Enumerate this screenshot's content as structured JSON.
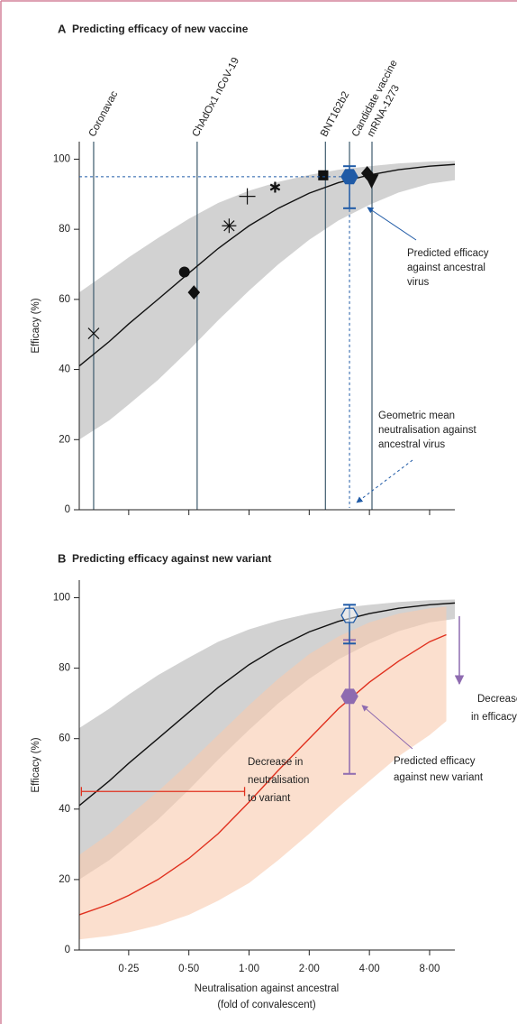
{
  "chart_data": [
    {
      "type": "scatter",
      "panel": "A",
      "title": "Predicting efficacy of new vaccine",
      "y_label": "Efficacy (%)",
      "log_x": true,
      "xlim": [
        0.1415,
        10.7
      ],
      "ylim": [
        0,
        105
      ],
      "xticks": [
        0.25,
        0.5,
        1,
        2,
        4,
        8
      ],
      "yticks": [
        0,
        20,
        40,
        60,
        80,
        100
      ],
      "vaccines": [
        {
          "name": "Coronavac",
          "x": 0.167
        },
        {
          "name": "ChAdOx1 nCoV-19",
          "x": 0.55
        },
        {
          "name": "BNT162b2",
          "x": 2.41
        },
        {
          "name": "mRNA-1273",
          "x": 4.12
        }
      ],
      "points": [
        {
          "x": 0.167,
          "y": 50.3,
          "marker": "x"
        },
        {
          "x": 0.475,
          "y": 67.8,
          "marker": "circle"
        },
        {
          "x": 0.53,
          "y": 62,
          "marker": "diamond"
        },
        {
          "x": 0.795,
          "y": 81,
          "marker": "asterisk"
        },
        {
          "x": 0.98,
          "y": 89.4,
          "marker": "plus"
        },
        {
          "x": 1.35,
          "y": 92,
          "marker": "star"
        },
        {
          "x": 2.35,
          "y": 95.4,
          "marker": "square"
        },
        {
          "x": 3.9,
          "y": 96,
          "marker": "diamond"
        },
        {
          "x": 4.1,
          "y": 94,
          "marker": "triangle-down"
        }
      ],
      "series": [
        {
          "color": "#111111",
          "band_color": "#d2d2d2",
          "x": [
            0.1415,
            0.2,
            0.25,
            0.35,
            0.5,
            0.7,
            1,
            1.4,
            2,
            2.8,
            4,
            5.6,
            8,
            10.7
          ],
          "values": [
            41,
            48,
            53,
            60,
            67.5,
            74.5,
            81,
            86,
            90.3,
            93.3,
            95.5,
            97,
            98,
            98.5
          ],
          "upper": [
            62,
            68,
            72,
            77.5,
            83,
            87.5,
            91,
            93.5,
            95.5,
            97,
            98,
            98.8,
            99.3,
            99.5
          ],
          "lower": [
            20,
            25.5,
            30,
            37,
            45.5,
            54,
            62.5,
            70,
            77,
            82.5,
            87,
            90.5,
            93,
            94
          ]
        }
      ],
      "candidate": {
        "name": "Candidate vaccine",
        "x": 3.18,
        "y": 95,
        "ci": [
          86,
          98
        ],
        "color": "#1f5aa6"
      },
      "annotations": [
        {
          "lines": [
            "Predicted efficacy",
            "against ancestral",
            "virus"
          ]
        },
        {
          "lines": [
            "Geometric mean",
            "neutralisation against",
            "ancestral virus"
          ]
        }
      ]
    },
    {
      "type": "line",
      "panel": "B",
      "title": "Predicting efficacy against new variant",
      "y_label": "Efficacy (%)",
      "x_label": [
        "Neutralisation against ancestral",
        "(fold of convalescent)"
      ],
      "log_x": true,
      "xlim": [
        0.1415,
        10.7
      ],
      "ylim": [
        0,
        105
      ],
      "xticks": [
        {
          "value": 0.25,
          "label": "0·25"
        },
        {
          "value": 0.5,
          "label": "0·50"
        },
        {
          "value": 1,
          "label": "1·00"
        },
        {
          "value": 2,
          "label": "2·00"
        },
        {
          "value": 4,
          "label": "4·00"
        },
        {
          "value": 8,
          "label": "8·00"
        }
      ],
      "yticks": [
        0,
        20,
        40,
        60,
        80,
        100
      ],
      "series": [
        {
          "color": "#111111",
          "band_color": "#d2d2d2",
          "x": [
            0.1415,
            0.2,
            0.25,
            0.35,
            0.5,
            0.7,
            1,
            1.4,
            2,
            2.8,
            4,
            5.6,
            8,
            10.7
          ],
          "values": [
            41,
            48,
            53,
            60,
            67.5,
            74.5,
            81,
            86,
            90.3,
            93.3,
            95.5,
            97,
            98,
            98.5
          ],
          "upper": [
            63,
            68.5,
            72.5,
            78,
            83,
            87.5,
            91,
            93.5,
            95.5,
            97,
            98,
            98.8,
            99.3,
            99.5
          ],
          "lower": [
            20,
            25.5,
            30,
            37,
            45.5,
            54,
            62.5,
            70,
            77,
            82.5,
            87,
            90.5,
            93,
            94
          ]
        },
        {
          "color": "#e0301e",
          "band_color": "#f9c9ae",
          "x": [
            0.1415,
            0.2,
            0.25,
            0.35,
            0.5,
            0.7,
            1,
            1.4,
            2,
            2.8,
            4,
            5.6,
            8,
            9.7
          ],
          "values": [
            10,
            13,
            15.5,
            20,
            26,
            33,
            42,
            51,
            60,
            68.5,
            76,
            82,
            87.5,
            89.5
          ],
          "upper": [
            27,
            33,
            38,
            45,
            53,
            61,
            69.5,
            77,
            84,
            89,
            93,
            95.5,
            97,
            97.5
          ],
          "lower": [
            3,
            4,
            5,
            7,
            10,
            14,
            19,
            25.5,
            33,
            40.5,
            48,
            55,
            61,
            65
          ]
        }
      ],
      "ancestral_point": {
        "x": 3.18,
        "y": 95,
        "ci": [
          87,
          98
        ],
        "color": "#1f5aa6"
      },
      "variant_point": {
        "x": 3.18,
        "y": 72,
        "ci": [
          50,
          88
        ],
        "color": "#8e6bb0"
      },
      "shift": {
        "y": 45,
        "x": [
          0.145,
          0.95
        ],
        "color": "#e0301e"
      },
      "annotations": [
        {
          "lines": [
            "Decrease in",
            "neutralisation",
            "to variant"
          ]
        },
        {
          "lines": [
            "Decrease",
            "in efficacy"
          ]
        },
        {
          "lines": [
            "Predicted efficacy",
            "against new variant"
          ]
        }
      ]
    }
  ]
}
